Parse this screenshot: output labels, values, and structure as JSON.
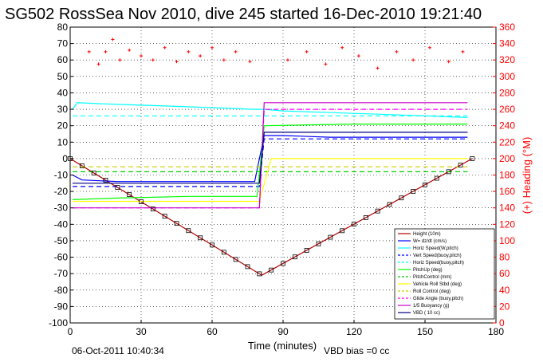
{
  "chart_data": {
    "type": "line",
    "title": "SG502 RossSea Nov 2010, dive 245 started 16-Dec-2010 19:21:40",
    "xlabel": "Time (minutes)",
    "ylabel_right": "(+) Heading (°M)",
    "xlim": [
      0,
      180
    ],
    "ylim": [
      -100,
      80
    ],
    "ylim_right": [
      0,
      360
    ],
    "xticks": [
      "0",
      "30",
      "60",
      "90",
      "120",
      "150",
      "180"
    ],
    "yticks": [
      "-100",
      "-90",
      "-80",
      "-70",
      "-60",
      "-50",
      "-40",
      "-30",
      "-20",
      "-10",
      "0",
      "10",
      "20",
      "30",
      "40",
      "50",
      "60",
      "70",
      "80"
    ],
    "yticks_right": [
      "0",
      "20",
      "40",
      "60",
      "80",
      "100",
      "120",
      "140",
      "160",
      "180",
      "200",
      "220",
      "240",
      "260",
      "280",
      "300",
      "320",
      "340",
      "360"
    ],
    "grid": true,
    "legend_position": "bottom-right",
    "footer_date": "06-Oct-2011 10:40:34",
    "footer_note": "VBD bias =0 cc",
    "colors": {
      "heading": "#ff0000",
      "depth": "#b00000",
      "w": "#0000ff",
      "horz": "#00ffff",
      "pitch": "#00cc00",
      "roll": "#ffff00",
      "buoy": "#cc00cc",
      "vbd": "#000080"
    },
    "series": [
      {
        "name": "Height (10m)",
        "color": "#b00000",
        "style": "solid",
        "x": [
          0,
          81,
          170
        ],
        "y": [
          0,
          -71,
          0
        ]
      },
      {
        "name": "W= dz/dt (cm/s)",
        "color": "#0000ff",
        "style": "solid",
        "x": [
          1,
          5,
          20,
          40,
          60,
          78,
          82,
          90,
          110,
          130,
          150,
          168
        ],
        "y": [
          -10,
          -13,
          -14,
          -14,
          -14,
          -14,
          14,
          14,
          13,
          13,
          13,
          13
        ]
      },
      {
        "name": "Horiz Speed(W,pitch)",
        "color": "#00ffff",
        "style": "solid",
        "x": [
          1,
          3,
          20,
          40,
          60,
          78,
          82,
          90,
          110,
          130,
          150,
          168
        ],
        "y": [
          30,
          34,
          33,
          32,
          31,
          30,
          30,
          29,
          28,
          27,
          26,
          25
        ]
      },
      {
        "name": "Vert Speed(buoy,pitch)",
        "color": "#0000ff",
        "style": "dashed",
        "x": [
          1,
          80,
          82,
          168
        ],
        "y": [
          -17,
          -17,
          12,
          12
        ]
      },
      {
        "name": "Horiz Speed(buoy,pitch)",
        "color": "#00ffff",
        "style": "dashed",
        "x": [
          1,
          80,
          82,
          168
        ],
        "y": [
          26,
          26,
          26,
          26
        ]
      },
      {
        "name": "PitchUp (deg)",
        "color": "#00ff00",
        "style": "solid",
        "x": [
          1,
          20,
          50,
          79,
          82,
          120,
          168
        ],
        "y": [
          -25,
          -24,
          -23,
          -23,
          20,
          21,
          21
        ]
      },
      {
        "name": "PitchControl (mm)",
        "color": "#00cc00",
        "style": "dashed",
        "x": [
          1,
          80,
          82,
          168
        ],
        "y": [
          -8,
          -8,
          -8,
          -8
        ]
      },
      {
        "name": "Vehicle Roll Stbd (deg)",
        "color": "#ffff00",
        "style": "solid",
        "x": [
          1,
          80,
          85,
          168
        ],
        "y": [
          -26,
          -26,
          0,
          0
        ]
      },
      {
        "name": "Roll Control (deg)",
        "color": "#cccc00",
        "style": "dashed",
        "x": [
          1,
          80,
          82,
          168
        ],
        "y": [
          -5,
          -5,
          -5,
          -5
        ]
      },
      {
        "name": "Glide Angle (buoy,pitch)",
        "color": "#ff00ff",
        "style": "dashed",
        "x": [
          1,
          80,
          82,
          168
        ],
        "y": [
          -30,
          -30,
          30,
          30
        ]
      },
      {
        "name": "1/5 Buoyancy (g)",
        "color": "#cc00cc",
        "style": "solid",
        "x": [
          1,
          80,
          82,
          168
        ],
        "y": [
          -30,
          -30,
          34,
          34
        ]
      },
      {
        "name": "VBD ( 10 cc)",
        "color": "#000080",
        "style": "solid",
        "x": [
          1,
          80,
          82,
          168
        ],
        "y": [
          -15,
          -15,
          16,
          16
        ]
      }
    ],
    "heading_points_deg": [
      {
        "x": 8,
        "y": 330
      },
      {
        "x": 12,
        "y": 315
      },
      {
        "x": 15,
        "y": 330
      },
      {
        "x": 18,
        "y": 345
      },
      {
        "x": 21,
        "y": 320
      },
      {
        "x": 25,
        "y": 332
      },
      {
        "x": 30,
        "y": 325
      },
      {
        "x": 35,
        "y": 320
      },
      {
        "x": 40,
        "y": 335
      },
      {
        "x": 45,
        "y": 318
      },
      {
        "x": 50,
        "y": 330
      },
      {
        "x": 55,
        "y": 325
      },
      {
        "x": 60,
        "y": 335
      },
      {
        "x": 65,
        "y": 320
      },
      {
        "x": 70,
        "y": 330
      },
      {
        "x": 76,
        "y": 318
      },
      {
        "x": 92,
        "y": 320
      },
      {
        "x": 100,
        "y": 330
      },
      {
        "x": 108,
        "y": 315
      },
      {
        "x": 115,
        "y": 335
      },
      {
        "x": 122,
        "y": 325
      },
      {
        "x": 130,
        "y": 310
      },
      {
        "x": 138,
        "y": 330
      },
      {
        "x": 145,
        "y": 320
      },
      {
        "x": 152,
        "y": 335
      },
      {
        "x": 160,
        "y": 318
      },
      {
        "x": 166,
        "y": 330
      }
    ]
  }
}
